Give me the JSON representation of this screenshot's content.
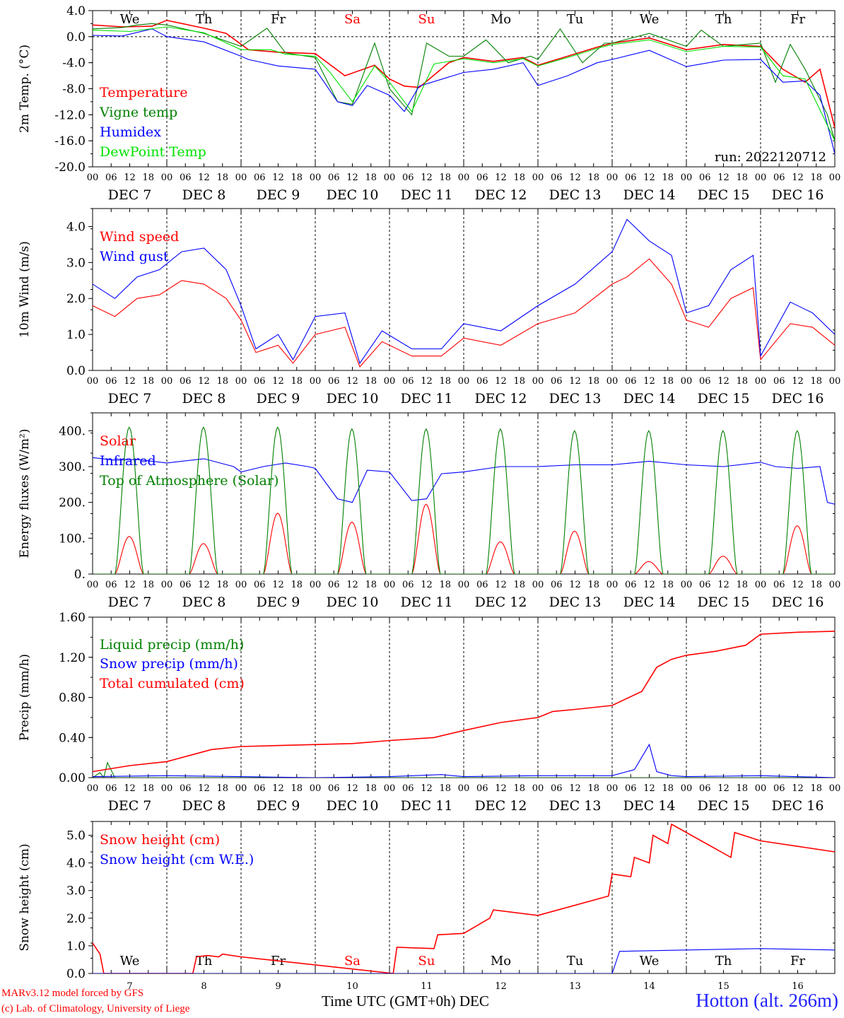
{
  "colors": {
    "red": "#ff0000",
    "green": "#008000",
    "blue": "#0000ff",
    "lightgreen": "#00e000",
    "axis": "#000000"
  },
  "footer": {
    "credit_line1": "MARv3.12 model forced by GFS",
    "credit_line2": "(c) Lab. of Climatology, University of Liege",
    "station": "Hotton (alt. 266m)",
    "x_title": "Time UTC (GMT+0h) DEC"
  },
  "x_axis": {
    "hour_ticks": [
      "00",
      "06",
      "12",
      "18"
    ],
    "end_tick": "00",
    "date_labels": [
      "DEC  7",
      "DEC  8",
      "DEC  9",
      "DEC 10",
      "DEC 11",
      "DEC 12",
      "DEC 13",
      "DEC 14",
      "DEC 15",
      "DEC 16"
    ],
    "day_names": [
      "We",
      "Th",
      "Fr",
      "Sa",
      "Su",
      "Mo",
      "Tu",
      "We",
      "Th",
      "Fr"
    ],
    "weekend_days": [
      3,
      4
    ],
    "day_numbers": [
      "7",
      "8",
      "9",
      "10",
      "11",
      "12",
      "13",
      "14",
      "15",
      "16"
    ]
  },
  "chart_data": [
    {
      "type": "line",
      "ylabel": "2m Temp. (°C)",
      "ylim": [
        -20,
        4
      ],
      "yticks": [
        "4.0",
        "0.0",
        "-4.0",
        "-8.0",
        "-12.0",
        "-16.0",
        "-20.0"
      ],
      "annotation": "run: 2022120712",
      "x_unit": "days since Dec 7 00 UTC",
      "series": [
        {
          "name": "Temperature",
          "color": "#ff0000",
          "x": [
            0,
            0.4,
            0.8,
            1,
            1.5,
            1.8,
            2.1,
            2.5,
            3,
            3.4,
            3.8,
            4,
            4.2,
            4.4,
            4.8,
            5,
            5.4,
            5.8,
            6,
            6.4,
            6.8,
            7,
            7.5,
            8,
            8.5,
            9,
            9.3,
            9.6,
            9.8,
            10
          ],
          "y": [
            1.8,
            1.5,
            1.6,
            2.5,
            1.3,
            0.5,
            -2,
            -2.4,
            -2.6,
            -6,
            -4.4,
            -6.5,
            -7.6,
            -7.8,
            -4,
            -3.2,
            -3.8,
            -3.2,
            -4.4,
            -3,
            -1.6,
            -1,
            -0.2,
            -2,
            -1.2,
            -1.5,
            -5,
            -7,
            -5,
            -14
          ]
        },
        {
          "name": "Vigne temp",
          "color": "#008000",
          "x": [
            0,
            0.4,
            0.6,
            0.8,
            1,
            1.5,
            2,
            2.35,
            2.6,
            3,
            3.3,
            3.5,
            3.8,
            4,
            4.3,
            4.5,
            4.8,
            5,
            5.3,
            5.6,
            5.9,
            6,
            6.3,
            6.6,
            6.9,
            7,
            7.5,
            8,
            8.2,
            8.5,
            9,
            9.2,
            9.4,
            9.6,
            9.9,
            10
          ],
          "y": [
            1.2,
            1.4,
            1.8,
            2,
            1.8,
            0.5,
            -1.5,
            1.3,
            -2.5,
            -3.2,
            -10,
            -10.4,
            -1,
            -8,
            -12,
            -1,
            -3,
            -3,
            -0.5,
            -4,
            -3,
            -3.5,
            1.2,
            -4,
            -1,
            -1,
            0.5,
            -1.5,
            1,
            -1.5,
            -1,
            -7,
            -1.2,
            -5,
            -12,
            -16
          ]
        },
        {
          "name": "Humidex",
          "color": "#0000ff",
          "x": [
            0,
            0.4,
            0.8,
            1,
            1.5,
            2,
            2.1,
            2.5,
            3,
            3.3,
            3.5,
            3.7,
            4,
            4.2,
            4.4,
            5,
            5.4,
            5.8,
            6,
            6.4,
            6.8,
            7,
            7.5,
            8,
            8.5,
            9,
            9.3,
            9.6,
            9.8,
            10
          ],
          "y": [
            0.2,
            0.1,
            1.2,
            0,
            -0.8,
            -3,
            -3.5,
            -4.5,
            -5,
            -10,
            -10.6,
            -7.5,
            -9,
            -11.5,
            -7.6,
            -5.5,
            -5,
            -4,
            -7.5,
            -6,
            -4,
            -3.5,
            -2.1,
            -4.6,
            -3.6,
            -3.5,
            -7,
            -6.8,
            -9,
            -18
          ]
        },
        {
          "name": "DewPoint Temp",
          "color": "#00e000",
          "x": [
            0,
            0.5,
            1,
            1.5,
            2,
            2.4,
            2.6,
            3,
            3.2,
            3.5,
            3.8,
            4,
            4.3,
            4.6,
            5,
            5.4,
            5.8,
            6,
            6.4,
            6.8,
            7,
            7.5,
            8,
            8.5,
            9,
            9.3,
            9.6,
            10
          ],
          "y": [
            1,
            0.8,
            1.5,
            0.6,
            -2,
            -2,
            -2.7,
            -3,
            -5.5,
            -10,
            -4.5,
            -7,
            -11.5,
            -4.2,
            -3.4,
            -4,
            -3.4,
            -4.5,
            -3.2,
            -1.8,
            -1.2,
            -0.5,
            -2.3,
            -1.5,
            -1.6,
            -6,
            -6.5,
            -16
          ]
        }
      ]
    },
    {
      "type": "line",
      "ylabel": "10m Wind (m/s)",
      "ylim": [
        0,
        4.5
      ],
      "yticks": [
        "4.0",
        "3.0",
        "2.0",
        "1.0",
        "0.0"
      ],
      "series": [
        {
          "name": "Wind speed",
          "color": "#ff0000",
          "x": [
            0,
            0.3,
            0.6,
            0.9,
            1.2,
            1.5,
            1.8,
            2,
            2.2,
            2.5,
            2.7,
            3,
            3.4,
            3.6,
            3.9,
            4.3,
            4.7,
            5,
            5.5,
            6,
            6.5,
            7,
            7.2,
            7.5,
            7.8,
            8,
            8.3,
            8.6,
            8.9,
            9,
            9.4,
            9.7,
            10
          ],
          "y": [
            1.8,
            1.5,
            2,
            2.1,
            2.5,
            2.4,
            2,
            1.4,
            0.5,
            0.7,
            0.2,
            1,
            1.2,
            0.1,
            0.8,
            0.4,
            0.4,
            0.9,
            0.7,
            1.3,
            1.6,
            2.4,
            2.6,
            3.1,
            2.4,
            1.4,
            1.2,
            2,
            2.3,
            0.3,
            1.3,
            1.2,
            0.7
          ]
        },
        {
          "name": "Wind gust",
          "color": "#0000ff",
          "x": [
            0,
            0.3,
            0.6,
            0.9,
            1.2,
            1.5,
            1.8,
            2,
            2.2,
            2.5,
            2.7,
            3,
            3.4,
            3.6,
            3.9,
            4.3,
            4.7,
            5,
            5.5,
            6,
            6.5,
            7,
            7.2,
            7.5,
            7.8,
            8,
            8.3,
            8.6,
            8.9,
            9,
            9.4,
            9.7,
            10
          ],
          "y": [
            2.4,
            2,
            2.6,
            2.8,
            3.3,
            3.4,
            2.8,
            1.8,
            0.6,
            1,
            0.3,
            1.5,
            1.6,
            0.2,
            1.1,
            0.6,
            0.6,
            1.3,
            1.1,
            1.8,
            2.4,
            3.3,
            4.2,
            3.6,
            3.2,
            1.6,
            1.8,
            2.8,
            3.2,
            0.4,
            1.9,
            1.6,
            1.0
          ]
        }
      ]
    },
    {
      "type": "line",
      "ylabel": "Energy fluxes (W/m²)",
      "ylim": [
        0,
        450
      ],
      "yticks": [
        "400.",
        "300.",
        "200.",
        "100.",
        "0."
      ],
      "series": [
        {
          "name": "Solar",
          "color": "#ff0000",
          "day_peaks": [
            105,
            85,
            170,
            145,
            195,
            90,
            120,
            35,
            50,
            135
          ]
        },
        {
          "name": "Infrared",
          "color": "#0000ff",
          "x": [
            0,
            0.3,
            0.6,
            1,
            1.5,
            1.9,
            2,
            2.3,
            2.6,
            2.9,
            3,
            3.3,
            3.5,
            3.7,
            4,
            4.3,
            4.5,
            4.7,
            5,
            5.5,
            6,
            6.5,
            7,
            7.5,
            8,
            8.5,
            9,
            9.2,
            9.5,
            9.8,
            9.9,
            10
          ],
          "y": [
            325,
            318,
            320,
            310,
            322,
            300,
            285,
            300,
            310,
            300,
            295,
            210,
            200,
            290,
            285,
            205,
            210,
            280,
            285,
            300,
            300,
            305,
            305,
            315,
            305,
            300,
            312,
            300,
            295,
            300,
            200,
            195
          ]
        },
        {
          "name": "Top of Atmosphere (Solar)",
          "color": "#008000",
          "day_peaks": [
            410,
            410,
            410,
            405,
            405,
            405,
            400,
            400,
            400,
            400
          ]
        }
      ]
    },
    {
      "type": "line",
      "ylabel": "Precip (mm/h)",
      "ylim": [
        0,
        1.6
      ],
      "yticks": [
        "1.60",
        "1.20",
        "0.80",
        "0.40",
        "0.00"
      ],
      "series": [
        {
          "name": "Liquid precip (mm/h)",
          "color": "#008000",
          "x": [
            0,
            0.1,
            0.15,
            0.2,
            0.3,
            1,
            5,
            10
          ],
          "y": [
            0,
            0.05,
            0,
            0.15,
            0,
            0,
            0,
            0
          ]
        },
        {
          "name": "Snow precip (mm/h)",
          "color": "#0000ff",
          "x": [
            0,
            1,
            2,
            3,
            4,
            4.7,
            5,
            6,
            7,
            7.3,
            7.5,
            7.6,
            7.8,
            8,
            9,
            10
          ],
          "y": [
            0.01,
            0.02,
            0.01,
            0,
            0.01,
            0.03,
            0.01,
            0.02,
            0.02,
            0.08,
            0.33,
            0.06,
            0.02,
            0.01,
            0.02,
            0
          ]
        },
        {
          "name": "Total cumulated (cm)",
          "color": "#ff0000",
          "x": [
            0,
            0.5,
            1,
            1.3,
            1.6,
            2,
            2.5,
            3,
            3.5,
            4,
            4.6,
            5,
            5.5,
            6,
            6.2,
            6.5,
            7,
            7.4,
            7.6,
            7.8,
            8,
            8.4,
            8.8,
            9,
            9.5,
            10
          ],
          "y": [
            0.06,
            0.12,
            0.16,
            0.22,
            0.28,
            0.31,
            0.32,
            0.33,
            0.34,
            0.37,
            0.4,
            0.47,
            0.55,
            0.6,
            0.66,
            0.68,
            0.72,
            0.86,
            1.1,
            1.18,
            1.22,
            1.26,
            1.32,
            1.43,
            1.45,
            1.46
          ]
        }
      ]
    },
    {
      "type": "line",
      "ylabel": "Snow height (cm)",
      "ylim": [
        0,
        5.5
      ],
      "yticks": [
        "5.0",
        "4.0",
        "3.0",
        "2.0",
        "1.0",
        "0.0"
      ],
      "series": [
        {
          "name": "Snow height (cm)",
          "color": "#ff0000",
          "x": [
            0,
            0.1,
            0.15,
            1.35,
            1.4,
            1.55,
            1.7,
            1.75,
            2,
            4.05,
            4.1,
            4.6,
            4.65,
            5,
            5.35,
            5.4,
            6,
            6.95,
            7,
            7.25,
            7.3,
            7.5,
            7.55,
            7.75,
            7.8,
            8.6,
            8.65,
            9,
            9.5,
            10
          ],
          "y": [
            1.1,
            0.7,
            0,
            0,
            0.6,
            0.65,
            0.6,
            0.7,
            0.6,
            0,
            0.95,
            0.9,
            1.4,
            1.45,
            2.0,
            2.3,
            2.1,
            2.8,
            3.6,
            3.5,
            4.2,
            4.0,
            5.0,
            4.7,
            5.4,
            4.2,
            5.1,
            4.8,
            4.6,
            4.4
          ]
        },
        {
          "name": "Snow height (cm W.E.)",
          "color": "#0000ff",
          "x": [
            0,
            7.0,
            7.1,
            8,
            9,
            10
          ],
          "y": [
            0,
            0,
            0.8,
            0.85,
            0.9,
            0.85
          ]
        }
      ]
    }
  ]
}
